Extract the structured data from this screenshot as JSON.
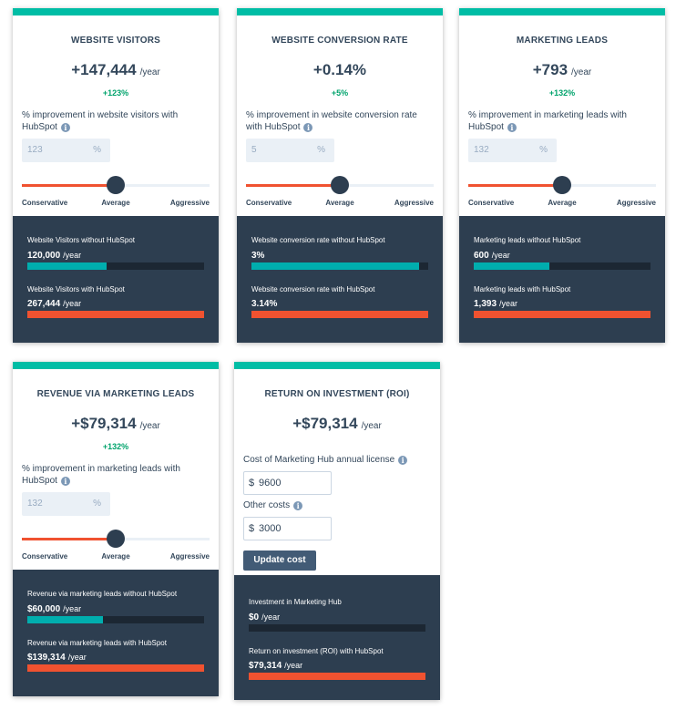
{
  "cards": [
    {
      "title": "WEBSITE VISITORS",
      "main_value": "+147,444",
      "unit": "/year",
      "delta": "+123%",
      "improvement_label": "% improvement in website visitors with HubSpot",
      "input_value": "123",
      "input_suffix": "%",
      "slider_position": 0.5,
      "slider_labels": [
        "Conservative",
        "Average",
        "Aggressive"
      ],
      "without_label": "Website Visitors without HubSpot",
      "without_value": "120,000",
      "without_fraction": 0.45,
      "with_label": "Website Visitors with HubSpot",
      "with_value": "267,444",
      "with_fraction": 1.0
    },
    {
      "title": "WEBSITE CONVERSION RATE",
      "main_value": "+0.14%",
      "unit": "",
      "delta": "+5%",
      "improvement_label": "% improvement in website conversion rate with HubSpot",
      "input_value": "5",
      "input_suffix": "%",
      "slider_position": 0.5,
      "slider_labels": [
        "Conservative",
        "Average",
        "Aggressive"
      ],
      "without_label": "Website conversion rate without HubSpot",
      "without_value": "3%",
      "without_fraction": 0.95,
      "with_label": "Website conversion rate with HubSpot",
      "with_value": "3.14%",
      "with_fraction": 1.0
    },
    {
      "title": "MARKETING LEADS",
      "main_value": "+793",
      "unit": "/year",
      "delta": "+132%",
      "improvement_label": "% improvement in marketing leads with HubSpot",
      "input_value": "132",
      "input_suffix": "%",
      "slider_position": 0.5,
      "slider_labels": [
        "Conservative",
        "Average",
        "Aggressive"
      ],
      "without_label": "Marketing leads without HubSpot",
      "without_value": "600",
      "without_fraction": 0.43,
      "with_label": "Marketing leads with HubSpot",
      "with_value": "1,393",
      "with_fraction": 1.0
    },
    {
      "title": "REVENUE VIA MARKETING LEADS",
      "main_value": "+$79,314",
      "unit": "/year",
      "delta": "+132%",
      "improvement_label": "% improvement in marketing leads with HubSpot",
      "input_value": "132",
      "input_suffix": "%",
      "slider_position": 0.5,
      "slider_labels": [
        "Conservative",
        "Average",
        "Aggressive"
      ],
      "without_label": "Revenue via marketing leads without HubSpot",
      "without_value": "$60,000",
      "without_fraction": 0.43,
      "with_label": "Revenue via marketing leads with HubSpot",
      "with_value": "$139,314",
      "with_fraction": 1.0
    }
  ],
  "roi": {
    "title": "RETURN ON INVESTMENT (ROI)",
    "main_value": "+$79,314",
    "unit": "/year",
    "license_label": "Cost of Marketing Hub annual license",
    "license_currency": "$",
    "license_value": "9600",
    "other_label": "Other costs",
    "other_currency": "$",
    "other_value": "3000",
    "button_label": "Update cost",
    "investment_label": "Investment in Marketing Hub",
    "investment_value": "$0",
    "investment_fraction": 0.0,
    "return_label": "Return on investment (ROI) with HubSpot",
    "return_value": "$79,314",
    "return_fraction": 1.0
  },
  "colors": {
    "accent_top": "#00bda5",
    "dark_panel": "#2d3e50",
    "teal_bar": "#00aeae",
    "orange_bar": "#f05230",
    "delta_green": "#00a36c"
  },
  "icons": {
    "info": "info-icon"
  }
}
